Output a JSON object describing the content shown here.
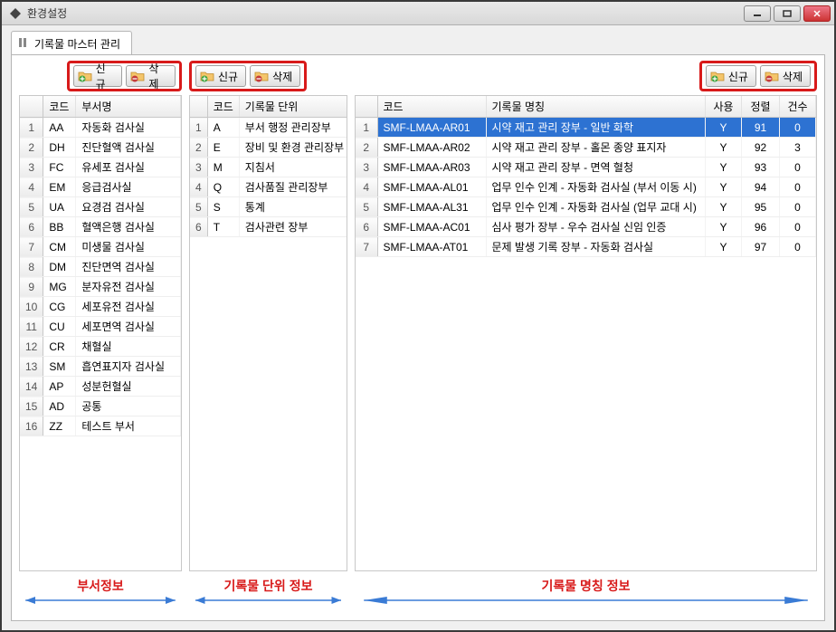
{
  "window": {
    "title": "환경설정"
  },
  "tab": {
    "label": "기록물 마스터 관리"
  },
  "buttons": {
    "new": "신규",
    "delete": "삭제"
  },
  "colors": {
    "highlight_border": "#d81a1a",
    "selection_bg": "#2d72d2",
    "selection_fg": "#ffffff",
    "arrow": "#3a7bd5",
    "folder_fill": "#f4c56b",
    "folder_stroke": "#c08a2a",
    "badge_new": "#3aa23a",
    "badge_del": "#c43a3a"
  },
  "dept": {
    "columns": [
      "코드",
      "부서명"
    ],
    "rows": [
      [
        "AA",
        "자동화 검사실"
      ],
      [
        "DH",
        "진단혈액 검사실"
      ],
      [
        "FC",
        "유세포 검사실"
      ],
      [
        "EM",
        "응급검사실"
      ],
      [
        "UA",
        "요경검 검사실"
      ],
      [
        "BB",
        "혈액은행 검사실"
      ],
      [
        "CM",
        "미생물 검사실"
      ],
      [
        "DM",
        "진단면역 검사실"
      ],
      [
        "MG",
        "분자유전 검사실"
      ],
      [
        "CG",
        "세포유전 검사실"
      ],
      [
        "CU",
        "세포면역 검사실"
      ],
      [
        "CR",
        "채혈실"
      ],
      [
        "SM",
        "흡연표지자 검사실"
      ],
      [
        "AP",
        "성분헌혈실"
      ],
      [
        "AD",
        "공통"
      ],
      [
        "ZZ",
        "테스트 부서"
      ]
    ]
  },
  "unit": {
    "columns": [
      "코드",
      "기록물 단위"
    ],
    "rows": [
      [
        "A",
        "부서 행정 관리장부"
      ],
      [
        "E",
        "장비 및 환경 관리장부"
      ],
      [
        "M",
        "지침서"
      ],
      [
        "Q",
        "검사품질 관리장부"
      ],
      [
        "S",
        "통계"
      ],
      [
        "T",
        "검사관련 장부"
      ]
    ]
  },
  "records": {
    "columns": [
      "코드",
      "기록물 명칭",
      "사용",
      "정렬",
      "건수"
    ],
    "selected_index": 0,
    "rows": [
      [
        "SMF-LMAA-AR01",
        "시약 재고 관리 장부 - 일반 화학",
        "Y",
        "91",
        "0"
      ],
      [
        "SMF-LMAA-AR02",
        "시약 재고 관리 장부 - 홀몬 종양 표지자",
        "Y",
        "92",
        "3"
      ],
      [
        "SMF-LMAA-AR03",
        "시약 재고 관리 장부 - 면역 혈청",
        "Y",
        "93",
        "0"
      ],
      [
        "SMF-LMAA-AL01",
        "업무 인수 인계 - 자동화 검사실 (부서 이동 시)",
        "Y",
        "94",
        "0"
      ],
      [
        "SMF-LMAA-AL31",
        "업무 인수 인계 - 자동화 검사실 (업무 교대 시)",
        "Y",
        "95",
        "0"
      ],
      [
        "SMF-LMAA-AC01",
        "심사 평가 장부 - 우수 검사실 신임 인증",
        "Y",
        "96",
        "0"
      ],
      [
        "SMF-LMAA-AT01",
        "문제 발생 기록 장부 - 자동화 검사실",
        "Y",
        "97",
        "0"
      ]
    ]
  },
  "footer": {
    "dept": "부서정보",
    "unit": "기록물 단위 정보",
    "rec": "기록물 명칭 정보"
  }
}
